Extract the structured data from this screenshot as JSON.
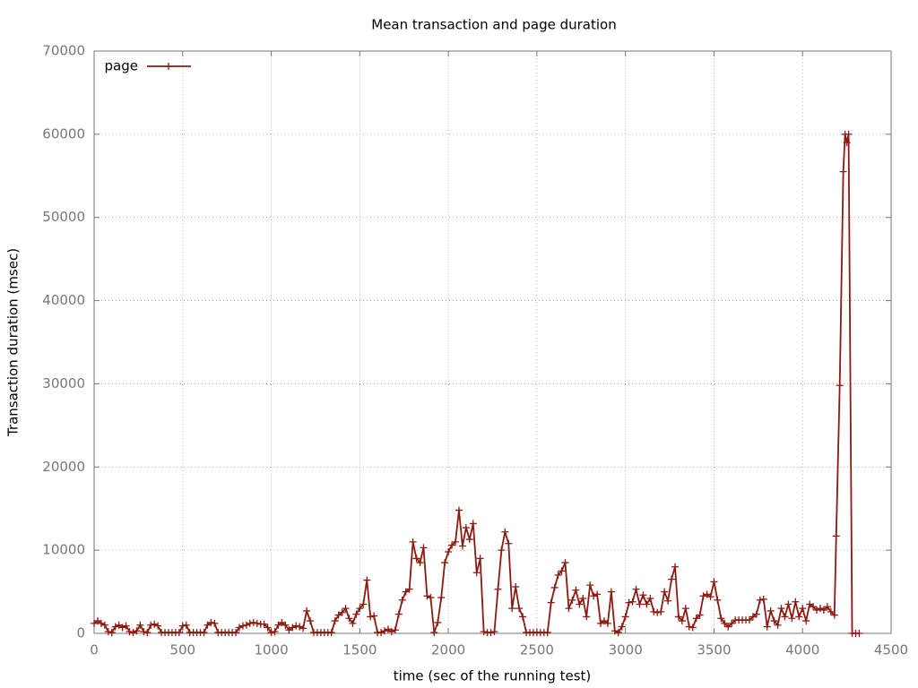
{
  "chart_data": {
    "type": "line",
    "title": "Mean transaction and page duration",
    "x_label": "time (sec of the running test)",
    "y_label": "Transaction duration (msec)",
    "xlim": [
      0,
      4500
    ],
    "ylim": [
      0,
      70000
    ],
    "xticks": [
      0,
      500,
      1000,
      1500,
      2000,
      2500,
      3000,
      3500,
      4000,
      4500
    ],
    "yticks": [
      0,
      10000,
      20000,
      30000,
      40000,
      50000,
      60000,
      70000
    ],
    "grid": true,
    "legend_position": "upper-left",
    "x": [
      0,
      20,
      40,
      60,
      80,
      100,
      120,
      140,
      160,
      180,
      200,
      220,
      240,
      260,
      280,
      300,
      320,
      340,
      360,
      380,
      400,
      420,
      440,
      460,
      480,
      500,
      520,
      540,
      560,
      580,
      600,
      620,
      640,
      660,
      680,
      700,
      720,
      740,
      760,
      780,
      800,
      820,
      840,
      860,
      880,
      900,
      920,
      940,
      960,
      980,
      1000,
      1020,
      1040,
      1060,
      1080,
      1100,
      1120,
      1140,
      1160,
      1180,
      1200,
      1220,
      1240,
      1260,
      1280,
      1300,
      1320,
      1340,
      1360,
      1380,
      1400,
      1420,
      1440,
      1460,
      1480,
      1500,
      1520,
      1540,
      1560,
      1580,
      1600,
      1620,
      1640,
      1660,
      1680,
      1700,
      1720,
      1740,
      1760,
      1780,
      1800,
      1820,
      1840,
      1860,
      1880,
      1900,
      1920,
      1940,
      1960,
      1980,
      2000,
      2020,
      2040,
      2060,
      2080,
      2100,
      2120,
      2140,
      2160,
      2180,
      2200,
      2220,
      2240,
      2260,
      2280,
      2300,
      2320,
      2340,
      2360,
      2380,
      2400,
      2420,
      2440,
      2460,
      2480,
      2500,
      2520,
      2540,
      2560,
      2580,
      2600,
      2620,
      2640,
      2660,
      2680,
      2700,
      2720,
      2740,
      2760,
      2780,
      2800,
      2820,
      2840,
      2860,
      2880,
      2900,
      2920,
      2940,
      2960,
      2980,
      3000,
      3020,
      3040,
      3060,
      3080,
      3100,
      3120,
      3140,
      3160,
      3180,
      3200,
      3220,
      3240,
      3260,
      3280,
      3300,
      3320,
      3340,
      3360,
      3380,
      3400,
      3420,
      3440,
      3460,
      3480,
      3500,
      3520,
      3540,
      3560,
      3580,
      3600,
      3620,
      3640,
      3660,
      3680,
      3700,
      3720,
      3740,
      3760,
      3780,
      3800,
      3820,
      3840,
      3860,
      3880,
      3900,
      3920,
      3940,
      3960,
      3980,
      4000,
      4020,
      4040,
      4060,
      4080,
      4100,
      4120,
      4140,
      4160,
      4180,
      4190,
      4210,
      4230,
      4240,
      4250,
      4260,
      4280,
      4300,
      4320
    ],
    "series": [
      {
        "name": "page",
        "color": "#8b1a10",
        "values": [
          1200,
          1500,
          1200,
          1000,
          200,
          100,
          800,
          1000,
          700,
          900,
          200,
          100,
          300,
          1000,
          200,
          100,
          1000,
          1100,
          900,
          100,
          100,
          100,
          100,
          100,
          100,
          900,
          1000,
          100,
          100,
          100,
          100,
          100,
          1000,
          1300,
          1200,
          100,
          100,
          100,
          100,
          100,
          100,
          700,
          900,
          1000,
          1200,
          1300,
          1200,
          1100,
          1100,
          700,
          100,
          200,
          1000,
          1300,
          1000,
          400,
          700,
          900,
          800,
          600,
          2700,
          1500,
          100,
          100,
          100,
          100,
          100,
          100,
          1500,
          2200,
          2500,
          3000,
          1800,
          1200,
          2300,
          3000,
          3500,
          6400,
          2000,
          2100,
          100,
          100,
          300,
          500,
          200,
          400,
          2300,
          4000,
          5000,
          5300,
          11000,
          9000,
          8500,
          10300,
          4500,
          4300,
          100,
          1300,
          4300,
          8500,
          9800,
          10600,
          11000,
          14800,
          10500,
          12700,
          11300,
          13200,
          7300,
          9000,
          200,
          100,
          100,
          200,
          5300,
          10000,
          12200,
          10800,
          3000,
          5600,
          3000,
          2000,
          100,
          100,
          100,
          100,
          100,
          100,
          100,
          3700,
          5500,
          7000,
          7500,
          8500,
          3000,
          4000,
          5200,
          3500,
          4200,
          2000,
          5800,
          4500,
          4700,
          1200,
          1500,
          1200,
          5000,
          300,
          100,
          800,
          2000,
          3700,
          3800,
          5300,
          3500,
          4600,
          3500,
          4200,
          2600,
          2500,
          2600,
          5000,
          3900,
          6500,
          8000,
          2000,
          1500,
          3000,
          800,
          700,
          1800,
          2200,
          4500,
          4700,
          4400,
          6200,
          4000,
          1800,
          1200,
          800,
          1200,
          1600,
          1600,
          1600,
          1600,
          1600,
          2000,
          2300,
          4000,
          4100,
          800,
          2700,
          1500,
          1000,
          3000,
          2000,
          3500,
          1800,
          3800,
          2000,
          3000,
          1500,
          3500,
          3200,
          2800,
          3000,
          2800,
          3200,
          2600,
          2200,
          11700,
          29800,
          55500,
          60000,
          59000,
          60000,
          0,
          0,
          0
        ]
      }
    ]
  }
}
